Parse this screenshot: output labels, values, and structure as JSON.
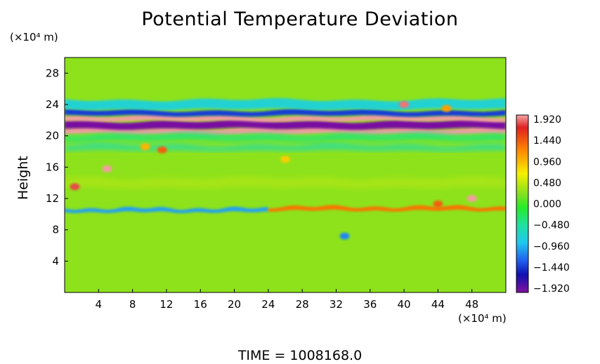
{
  "chart_data": {
    "type": "heatmap",
    "title": "Potential Temperature Deviation",
    "ylabel": "Height",
    "xlabel": "",
    "x_unit_label": "(×10⁴ m)",
    "y_unit_label": "(×10⁴ m)",
    "xlim": [
      0,
      52
    ],
    "ylim": [
      0,
      30
    ],
    "x_ticks": [
      "4",
      "8",
      "12",
      "16",
      "20",
      "24",
      "28",
      "32",
      "36",
      "40",
      "44",
      "48"
    ],
    "y_ticks": [
      "4",
      "8",
      "12",
      "16",
      "20",
      "24",
      "28"
    ],
    "colorbar": {
      "labels": [
        "1.920",
        "1.440",
        "0.960",
        "0.480",
        "0.000",
        "−0.480",
        "−0.960",
        "−1.440",
        "−1.920"
      ],
      "min": -1.92,
      "max": 1.92
    },
    "background_value": 0.25,
    "bands": [
      {
        "y": 10.5,
        "x_start": 0,
        "x_end": 24,
        "value": -1.0,
        "thickness": 0.5
      },
      {
        "y": 10.7,
        "x_start": 24,
        "x_end": 52,
        "value": 1.2,
        "thickness": 0.5
      },
      {
        "y": 20.6,
        "x_start": 0,
        "x_end": 52,
        "value": 1.9,
        "thickness": 0.8
      },
      {
        "y": 21.4,
        "x_start": 0,
        "x_end": 52,
        "value": -1.9,
        "thickness": 1.0
      },
      {
        "y": 22.2,
        "x_start": 0,
        "x_end": 52,
        "value": 1.9,
        "thickness": 0.6
      },
      {
        "y": 22.9,
        "x_start": 0,
        "x_end": 52,
        "value": -1.4,
        "thickness": 0.7
      },
      {
        "y": 24.0,
        "x_start": 0,
        "x_end": 52,
        "value": -0.7,
        "thickness": 1.2
      },
      {
        "y": 19.8,
        "x_start": 0,
        "x_end": 52,
        "value": -0.3,
        "thickness": 0.8
      },
      {
        "y": 18.5,
        "x_start": 0,
        "x_end": 52,
        "value": -0.5,
        "thickness": 0.6
      },
      {
        "y": 14.0,
        "x_start": 0,
        "x_end": 52,
        "value": 0.35,
        "thickness": 1.2
      }
    ],
    "features": [
      {
        "x": 5.0,
        "y": 15.8,
        "value": 1.9
      },
      {
        "x": 1.2,
        "y": 13.5,
        "value": 1.7
      },
      {
        "x": 11.5,
        "y": 18.2,
        "value": 1.3
      },
      {
        "x": 9.5,
        "y": 18.6,
        "value": 0.9
      },
      {
        "x": 33.0,
        "y": 7.2,
        "value": -1.1
      },
      {
        "x": 44.0,
        "y": 11.3,
        "value": 1.3
      },
      {
        "x": 48.0,
        "y": 12.0,
        "value": 1.9
      },
      {
        "x": 40.0,
        "y": 24.0,
        "value": 1.8
      },
      {
        "x": 45.0,
        "y": 23.5,
        "value": 1.0
      },
      {
        "x": 26.0,
        "y": 17.0,
        "value": 0.8
      }
    ]
  },
  "footer": {
    "time_text": "TIME  =  1008168.0"
  },
  "colors": {
    "background": "#ffffff",
    "field_base": "#26ec26"
  }
}
